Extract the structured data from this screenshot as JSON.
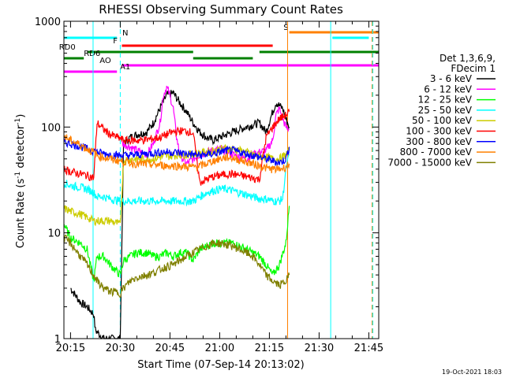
{
  "chart_data": {
    "type": "line",
    "title": "RHESSI Observing Summary Count Rates",
    "xlabel": "Start Time (07-Sep-14 20:13:02)",
    "ylabel": "Count Rate (s",
    "ylabel_sup": "-1",
    "ylabel_mid": " detector",
    "ylabel_end": ")",
    "footer": "19-Oct-2021 18:03",
    "x_start": "20:13:02",
    "x_range_minutes": [
      13,
      108
    ],
    "y_scale": "log",
    "ylim": [
      1,
      1000
    ],
    "x_ticks": [
      {
        "value": 15,
        "label": "20:15"
      },
      {
        "value": 30,
        "label": "20:30"
      },
      {
        "value": 45,
        "label": "20:45"
      },
      {
        "value": 60,
        "label": "21:00"
      },
      {
        "value": 75,
        "label": "21:15"
      },
      {
        "value": 90,
        "label": "21:30"
      },
      {
        "value": 105,
        "label": "21:45"
      }
    ],
    "y_ticks": [
      {
        "value": 1,
        "label": "1"
      },
      {
        "value": 10,
        "label": "10"
      },
      {
        "value": 100,
        "label": "100"
      },
      {
        "value": 1000,
        "label": "1000"
      }
    ],
    "legend_header": [
      "Det 1,3,6,9,",
      "FDecim 1"
    ],
    "legend_placement": "right",
    "series": [
      {
        "name": "3 - 6 keV",
        "color": "#000000",
        "x": [
          15,
          18,
          20,
          22,
          22.5,
          25,
          27,
          30,
          31,
          33,
          35,
          38,
          40,
          42,
          44,
          46,
          48,
          50,
          52,
          54,
          56,
          58,
          60,
          62,
          64,
          66,
          68,
          70,
          72,
          74,
          76,
          77,
          78,
          79,
          80,
          81
        ],
        "y": [
          3,
          2.2,
          2,
          1.7,
          1.2,
          1,
          1,
          1,
          70,
          80,
          85,
          90,
          110,
          150,
          200,
          210,
          170,
          140,
          110,
          90,
          80,
          75,
          80,
          85,
          90,
          95,
          100,
          105,
          110,
          90,
          140,
          170,
          160,
          150,
          120,
          100
        ]
      },
      {
        "name": "6 - 12 keV",
        "color": "#ff00ff",
        "x": [
          30.5,
          33,
          35,
          38,
          40,
          42,
          43,
          44,
          45,
          46,
          47,
          48,
          50,
          52,
          54,
          56,
          58,
          60,
          62,
          64,
          66,
          68,
          70,
          72,
          74,
          76,
          77,
          78,
          79,
          80,
          81
        ],
        "y": [
          70,
          65,
          60,
          55,
          70,
          110,
          200,
          240,
          200,
          150,
          80,
          55,
          45,
          50,
          55,
          58,
          60,
          62,
          60,
          55,
          52,
          50,
          55,
          58,
          60,
          75,
          130,
          150,
          120,
          100,
          95
        ]
      },
      {
        "name": "12 - 25 keV",
        "color": "#00ff00",
        "x": [
          13,
          15,
          18,
          20,
          22,
          23,
          25,
          27,
          30,
          31,
          33,
          35,
          38,
          40,
          42,
          44,
          46,
          48,
          50,
          52,
          54,
          56,
          58,
          60,
          62,
          64,
          66,
          68,
          70,
          72,
          74,
          76,
          78,
          80,
          81
        ],
        "y": [
          12,
          9,
          8,
          7,
          3.5,
          6,
          6,
          5,
          4,
          5.5,
          6,
          6.5,
          6.5,
          6,
          6,
          6.5,
          6,
          6.5,
          6.5,
          5.5,
          7,
          7.5,
          8,
          8,
          8,
          8,
          7.5,
          7,
          6.5,
          6,
          5,
          4,
          5,
          8,
          18
        ]
      },
      {
        "name": "25 - 50 keV",
        "color": "#00ffff",
        "x": [
          13,
          15,
          18,
          20,
          22,
          23,
          25,
          27,
          30,
          31,
          33,
          35,
          38,
          40,
          42,
          44,
          46,
          48,
          50,
          52,
          54,
          56,
          58,
          60,
          62,
          64,
          66,
          68,
          70,
          72,
          74,
          76,
          78,
          79,
          80,
          81
        ],
        "y": [
          30,
          28,
          27,
          26,
          24,
          22,
          22,
          21,
          20,
          20,
          20,
          20,
          20,
          20,
          20,
          20,
          20,
          20,
          20,
          20,
          22,
          24,
          25,
          26,
          26,
          25,
          24,
          23,
          22,
          21,
          21,
          20,
          20,
          21,
          40,
          55
        ]
      },
      {
        "name": "50 - 100 keV",
        "color": "#cccc00",
        "x": [
          13,
          15,
          18,
          20,
          22,
          23,
          25,
          27,
          30,
          31,
          33,
          35,
          38,
          40,
          42,
          44,
          46,
          48,
          50,
          52,
          54,
          56,
          58,
          60,
          62,
          64,
          66,
          68,
          70,
          72,
          74,
          76,
          78,
          80,
          81
        ],
        "y": [
          17,
          16,
          15,
          14,
          13,
          13,
          13,
          13,
          12,
          48,
          50,
          50,
          50,
          50,
          52,
          53,
          54,
          55,
          55,
          56,
          57,
          58,
          60,
          62,
          63,
          62,
          60,
          58,
          55,
          53,
          52,
          50,
          50,
          55,
          60
        ]
      },
      {
        "name": "100 - 300 keV",
        "color": "#ff0000",
        "x": [
          13,
          15,
          18,
          20,
          22,
          23,
          25,
          27,
          30,
          31,
          33,
          35,
          38,
          40,
          42,
          44,
          46,
          48,
          50,
          52,
          54,
          56,
          58,
          60,
          62,
          64,
          66,
          68,
          70,
          72,
          74,
          76,
          78,
          80,
          81
        ],
        "y": [
          40,
          38,
          36,
          35,
          33,
          110,
          95,
          85,
          78,
          75,
          75,
          75,
          76,
          78,
          80,
          85,
          90,
          92,
          92,
          88,
          30,
          32,
          34,
          35,
          36,
          36,
          35,
          34,
          33,
          32,
          80,
          100,
          120,
          130,
          140
        ]
      },
      {
        "name": "300 - 800 keV",
        "color": "#0000ff",
        "x": [
          13,
          15,
          18,
          20,
          22,
          23,
          25,
          27,
          30,
          31,
          33,
          35,
          38,
          40,
          42,
          44,
          46,
          48,
          50,
          52,
          54,
          56,
          58,
          60,
          62,
          64,
          66,
          68,
          70,
          72,
          74,
          76,
          78,
          80,
          81
        ],
        "y": [
          72,
          70,
          66,
          62,
          60,
          58,
          56,
          55,
          54,
          54,
          54,
          55,
          56,
          57,
          58,
          58,
          58,
          57,
          56,
          55,
          54,
          55,
          56,
          58,
          60,
          60,
          58,
          56,
          54,
          52,
          50,
          48,
          46,
          50,
          65
        ]
      },
      {
        "name": "800 - 7000 keV",
        "color": "#ff8000",
        "x": [
          13,
          15,
          18,
          20,
          22,
          23,
          25,
          27,
          30,
          31,
          33,
          35,
          38,
          40,
          42,
          44,
          46,
          48,
          50,
          52,
          54,
          56,
          58,
          60,
          62,
          64,
          66,
          68,
          70,
          72,
          74,
          76,
          78,
          80,
          81
        ],
        "y": [
          82,
          75,
          68,
          62,
          58,
          54,
          52,
          50,
          48,
          47,
          46,
          45,
          45,
          44,
          44,
          43,
          43,
          43,
          42,
          42,
          43,
          45,
          48,
          50,
          52,
          51,
          49,
          47,
          45,
          43,
          41,
          40,
          40,
          42,
          45
        ]
      },
      {
        "name": "7000 - 15000 keV",
        "color": "#808000",
        "x": [
          13,
          15,
          18,
          20,
          22,
          23,
          25,
          27,
          30,
          31,
          33,
          35,
          38,
          40,
          42,
          44,
          46,
          48,
          50,
          52,
          54,
          56,
          58,
          60,
          62,
          64,
          66,
          68,
          70,
          72,
          74,
          76,
          78,
          80,
          81
        ],
        "y": [
          9,
          8,
          6,
          5,
          4,
          3.5,
          3,
          2.8,
          2.7,
          3,
          3.5,
          3.8,
          4,
          4.2,
          4.5,
          4.8,
          5,
          5.5,
          6,
          6.5,
          7,
          7.5,
          8,
          8,
          7.8,
          7.5,
          7,
          6.5,
          6,
          5,
          4,
          3.5,
          3.2,
          3.5,
          4
        ]
      }
    ],
    "flag_bars": [
      {
        "label": "N",
        "color": "#00ffff",
        "label_color": "#00ffff",
        "label_at": 31.5,
        "segments": [
          [
            13,
            29
          ],
          [
            94,
            105
          ]
        ]
      },
      {
        "label": "S",
        "color": "#ff8000",
        "label_color": "#ff8000",
        "label_at": 80,
        "segments": [
          [
            81,
            108
          ]
        ]
      },
      {
        "label": "F",
        "color": "#ff0000",
        "label_color": "#ff0000",
        "label_at": 28.5,
        "segments": [
          [
            30.5,
            76
          ]
        ]
      },
      {
        "label": "RD0",
        "color": "#008000",
        "label_color": "#008000",
        "label_at": 14,
        "segments": [
          [
            20,
            52
          ],
          [
            72,
            108
          ]
        ]
      },
      {
        "label": "RD6",
        "color": "#008000",
        "label_color": "#008000",
        "label_at": 21.5,
        "segments": [
          [
            13,
            19
          ],
          [
            52,
            70
          ]
        ]
      },
      {
        "label": "AO",
        "color": "#ff00ff",
        "label_color": "#ff00ff",
        "label_at": 25.5,
        "segments": [
          [
            30.5,
            108
          ]
        ]
      },
      {
        "label": "A1",
        "color": "#ff00ff",
        "label_color": "#ff00ff",
        "label_at": 31.5,
        "segments": [
          [
            13,
            29
          ]
        ]
      }
    ],
    "vertical_markers": [
      {
        "x": 13,
        "color": "#00ffff",
        "style": "solid"
      },
      {
        "x": 21.8,
        "color": "#00ffff",
        "style": "solid"
      },
      {
        "x": 30,
        "color": "#00ffff",
        "style": "dashed"
      },
      {
        "x": 80.5,
        "color": "#ff8000",
        "style": "solid"
      },
      {
        "x": 93.5,
        "color": "#00ffff",
        "style": "solid"
      },
      {
        "x": 106,
        "color": "#ff8000",
        "style": "dashed"
      },
      {
        "x": 106.2,
        "color": "#00ffff",
        "style": "dashed"
      }
    ],
    "grid": false
  }
}
